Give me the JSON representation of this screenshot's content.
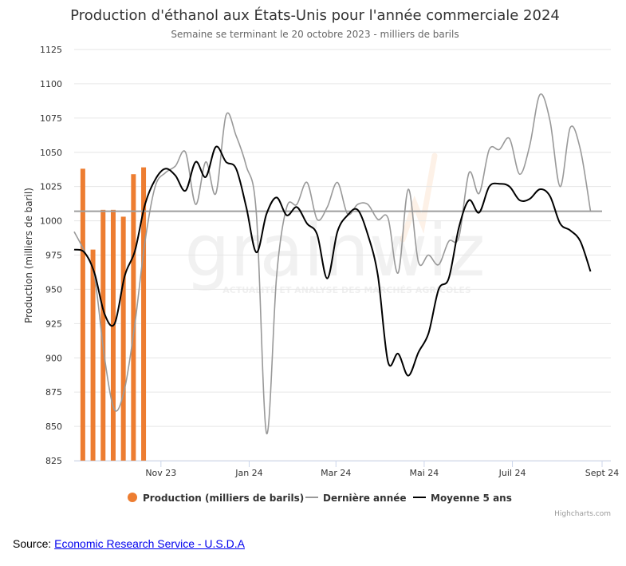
{
  "title": "Production d'éthanol aux États-Unis pour l'année commerciale 2024",
  "subtitle": "Semaine se terminant le 20 octobre 2023 - milliers de barils",
  "watermark": {
    "text": "grainwiz",
    "tagline": "ACTUALITÉ ET ANALYSE DES MARCHÉS AGRICOLES",
    "accent": "#f0a35e"
  },
  "credits": "Highcharts.com",
  "source": {
    "label": "Source:",
    "link_text": "Economic Research Service - U.S.D.A"
  },
  "colors": {
    "production": "#ed7d31",
    "previous_year": "#999999",
    "average": "#000000",
    "reference": "#9e9e9e",
    "grid": "#e6e6e6"
  },
  "chart_data": {
    "type": "bar+line",
    "ylabel": "Production (milliers de baril)",
    "ylim": [
      825,
      1125
    ],
    "yticks": [
      825,
      850,
      875,
      900,
      925,
      950,
      975,
      1000,
      1025,
      1050,
      1075,
      1100,
      1125
    ],
    "x_range": [
      "2023-09-02",
      "2024-09-01"
    ],
    "x_ticks": [
      {
        "label": "Nov 23",
        "date": "2023-11-01"
      },
      {
        "label": "Jan 24",
        "date": "2024-01-01"
      },
      {
        "label": "Mar 24",
        "date": "2024-03-01"
      },
      {
        "label": "Mai 24",
        "date": "2024-05-01"
      },
      {
        "label": "Juil 24",
        "date": "2024-07-01"
      },
      {
        "label": "Sept 24",
        "date": "2024-09-01"
      }
    ],
    "grid": true,
    "legend_placement": "bottom-center",
    "reference_line": 1007,
    "series": [
      {
        "name": "Production (milliers de barils)",
        "type": "bar",
        "points": [
          [
            "2023-09-08",
            1038
          ],
          [
            "2023-09-15",
            979
          ],
          [
            "2023-09-22",
            1008
          ],
          [
            "2023-09-29",
            1008
          ],
          [
            "2023-10-06",
            1003
          ],
          [
            "2023-10-13",
            1034
          ],
          [
            "2023-10-20",
            1039
          ]
        ]
      },
      {
        "name": "Dernière année",
        "type": "line",
        "points": [
          [
            "2023-09-02",
            992
          ],
          [
            "2023-09-09",
            978
          ],
          [
            "2023-09-16",
            960
          ],
          [
            "2023-09-23",
            900
          ],
          [
            "2023-09-30",
            862
          ],
          [
            "2023-10-07",
            878
          ],
          [
            "2023-10-14",
            925
          ],
          [
            "2023-10-21",
            985
          ],
          [
            "2023-10-28",
            1025
          ],
          [
            "2023-11-04",
            1035
          ],
          [
            "2023-11-11",
            1040
          ],
          [
            "2023-11-18",
            1050
          ],
          [
            "2023-11-25",
            1012
          ],
          [
            "2023-12-02",
            1043
          ],
          [
            "2023-12-09",
            1020
          ],
          [
            "2023-12-16",
            1077
          ],
          [
            "2023-12-23",
            1062
          ],
          [
            "2023-12-30",
            1040
          ],
          [
            "2024-01-06",
            1005
          ],
          [
            "2024-01-13",
            845
          ],
          [
            "2024-01-20",
            960
          ],
          [
            "2024-01-27",
            1010
          ],
          [
            "2024-02-03",
            1012
          ],
          [
            "2024-02-10",
            1028
          ],
          [
            "2024-02-17",
            1001
          ],
          [
            "2024-02-24",
            1010
          ],
          [
            "2024-03-02",
            1028
          ],
          [
            "2024-03-09",
            1005
          ],
          [
            "2024-03-16",
            1012
          ],
          [
            "2024-03-23",
            1012
          ],
          [
            "2024-03-30",
            1001
          ],
          [
            "2024-04-06",
            1002
          ],
          [
            "2024-04-13",
            962
          ],
          [
            "2024-04-20",
            1023
          ],
          [
            "2024-04-27",
            970
          ],
          [
            "2024-05-04",
            975
          ],
          [
            "2024-05-11",
            968
          ],
          [
            "2024-05-18",
            985
          ],
          [
            "2024-05-25",
            988
          ],
          [
            "2024-06-01",
            1035
          ],
          [
            "2024-06-08",
            1020
          ],
          [
            "2024-06-15",
            1052
          ],
          [
            "2024-06-22",
            1052
          ],
          [
            "2024-06-29",
            1060
          ],
          [
            "2024-07-06",
            1034
          ],
          [
            "2024-07-13",
            1055
          ],
          [
            "2024-07-20",
            1092
          ],
          [
            "2024-07-27",
            1073
          ],
          [
            "2024-08-03",
            1025
          ],
          [
            "2024-08-10",
            1068
          ],
          [
            "2024-08-17",
            1052
          ],
          [
            "2024-08-24",
            1007
          ]
        ]
      },
      {
        "name": "Moyenne 5 ans",
        "type": "line",
        "points": [
          [
            "2023-09-02",
            979
          ],
          [
            "2023-09-09",
            977
          ],
          [
            "2023-09-16",
            962
          ],
          [
            "2023-09-23",
            932
          ],
          [
            "2023-09-30",
            925
          ],
          [
            "2023-10-07",
            960
          ],
          [
            "2023-10-14",
            978
          ],
          [
            "2023-10-21",
            1012
          ],
          [
            "2023-10-28",
            1030
          ],
          [
            "2023-11-04",
            1038
          ],
          [
            "2023-11-11",
            1033
          ],
          [
            "2023-11-18",
            1022
          ],
          [
            "2023-11-25",
            1043
          ],
          [
            "2023-12-02",
            1032
          ],
          [
            "2023-12-09",
            1054
          ],
          [
            "2023-12-16",
            1043
          ],
          [
            "2023-12-23",
            1038
          ],
          [
            "2023-12-30",
            1010
          ],
          [
            "2024-01-06",
            977
          ],
          [
            "2024-01-13",
            1005
          ],
          [
            "2024-01-20",
            1017
          ],
          [
            "2024-01-27",
            1004
          ],
          [
            "2024-02-03",
            1010
          ],
          [
            "2024-02-10",
            998
          ],
          [
            "2024-02-17",
            990
          ],
          [
            "2024-02-24",
            958
          ],
          [
            "2024-03-02",
            992
          ],
          [
            "2024-03-09",
            1004
          ],
          [
            "2024-03-16",
            1008
          ],
          [
            "2024-03-23",
            990
          ],
          [
            "2024-03-30",
            960
          ],
          [
            "2024-04-06",
            897
          ],
          [
            "2024-04-13",
            903
          ],
          [
            "2024-04-20",
            887
          ],
          [
            "2024-04-27",
            904
          ],
          [
            "2024-05-04",
            918
          ],
          [
            "2024-05-11",
            950
          ],
          [
            "2024-05-18",
            958
          ],
          [
            "2024-05-25",
            995
          ],
          [
            "2024-06-01",
            1015
          ],
          [
            "2024-06-08",
            1006
          ],
          [
            "2024-06-15",
            1025
          ],
          [
            "2024-06-22",
            1027
          ],
          [
            "2024-06-29",
            1025
          ],
          [
            "2024-07-06",
            1015
          ],
          [
            "2024-07-13",
            1016
          ],
          [
            "2024-07-20",
            1023
          ],
          [
            "2024-07-27",
            1018
          ],
          [
            "2024-08-03",
            998
          ],
          [
            "2024-08-10",
            993
          ],
          [
            "2024-08-17",
            985
          ],
          [
            "2024-08-24",
            963
          ]
        ]
      }
    ]
  }
}
